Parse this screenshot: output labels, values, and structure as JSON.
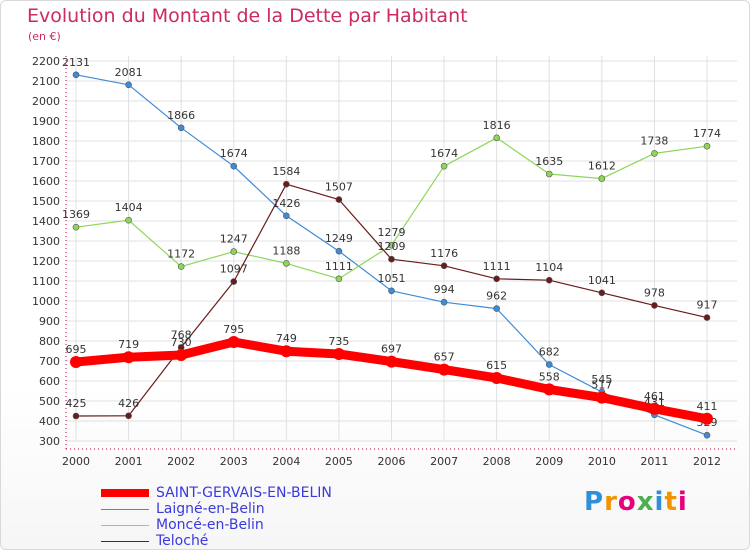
{
  "title": "Evolution du Montant de la Dette par Habitant",
  "subtitle": "(en €)",
  "logo": {
    "text": "Proxiti",
    "letters": [
      "P",
      "r",
      "o",
      "x",
      "i",
      "t",
      "i"
    ],
    "colors": [
      "#2f8fd8",
      "#f29400",
      "#e6007e",
      "#4caf50",
      "#2f8fd8",
      "#f29400",
      "#e6007e"
    ]
  },
  "colors": {
    "title": "#cc2966",
    "axis": "#cc2966",
    "grid": "#e0e0e0",
    "label": "#333333"
  },
  "chart_data": {
    "type": "line",
    "title": "Evolution du Montant de la Dette par Habitant",
    "ylabel": "(en €)",
    "xlabel": "",
    "ylim": [
      300,
      2200
    ],
    "ytick_step": 100,
    "grid": true,
    "legend_position": "bottom-left",
    "categories": [
      "2000",
      "2001",
      "2002",
      "2003",
      "2004",
      "2005",
      "2006",
      "2007",
      "2008",
      "2009",
      "2010",
      "2011",
      "2012"
    ],
    "series": [
      {
        "name": "SAINT-GERVAIS-EN-BELIN",
        "color": "#ff0000",
        "thick": true,
        "values": [
          695,
          719,
          730,
          795,
          749,
          735,
          697,
          657,
          615,
          558,
          517,
          461,
          411
        ]
      },
      {
        "name": "Laigné-en-Belin",
        "color": "#3f8bd6",
        "thick": false,
        "values": [
          2131,
          2081,
          1866,
          1674,
          1426,
          1249,
          1051,
          994,
          962,
          682,
          545,
          431,
          329
        ]
      },
      {
        "name": "Moncé-en-Belin",
        "color": "#8ed65a",
        "thick": false,
        "values": [
          1369,
          1404,
          1172,
          1247,
          1188,
          1111,
          1279,
          1674,
          1816,
          1635,
          1612,
          1738,
          1774
        ]
      },
      {
        "name": "Teloché",
        "color": "#6a1b1b",
        "thick": false,
        "values": [
          425,
          426,
          768,
          1097,
          1584,
          1507,
          1209,
          1176,
          1111,
          1104,
          1041,
          978,
          917
        ]
      }
    ]
  }
}
